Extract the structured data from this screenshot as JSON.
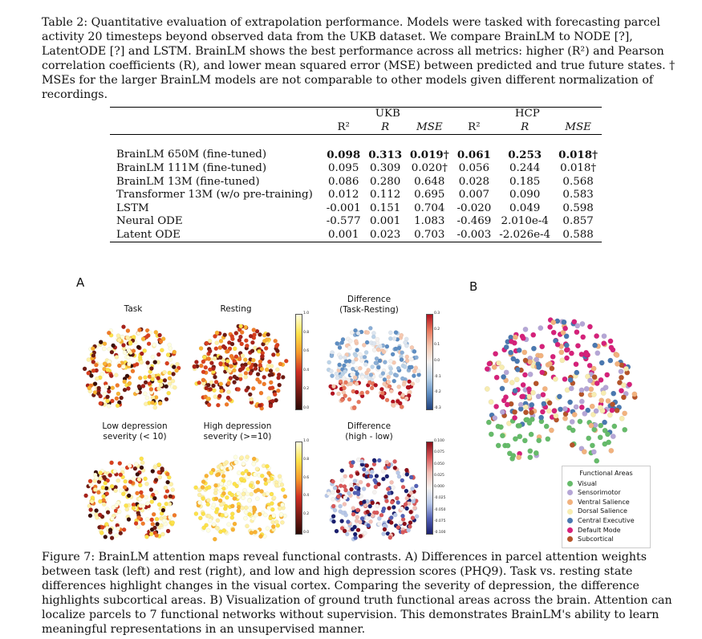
{
  "table_caption": "Table 2: Quantitative evaluation of extrapolation performance. Models were tasked with forecasting parcel activity 20 timesteps beyond observed data from the UKB dataset. We compare BrainLM to NODE [?], LatentODE [?] and LSTM. BrainLM shows the best performance across all metrics: higher (R²) and Pearson correlation coefficients (R), and lower mean squared error (MSE) between predicted and true future states. † MSEs for the larger BrainLM models are not comparable to other models given different normalization of recordings.",
  "table": {
    "groups": [
      "UKB",
      "HCP"
    ],
    "columns": [
      "R²",
      "R",
      "MSE",
      "R²",
      "R",
      "MSE"
    ],
    "rows": [
      {
        "model": "BrainLM 650M (fine-tuned)",
        "values": [
          "0.098",
          "0.313",
          "0.019†",
          "0.061",
          "0.253",
          "0.018†"
        ],
        "bold": true
      },
      {
        "model": "BrainLM 111M (fine-tuned)",
        "values": [
          "0.095",
          "0.309",
          "0.020†",
          "0.056",
          "0.244",
          "0.018†"
        ]
      },
      {
        "model": "BrainLM 13M (fine-tuned)",
        "values": [
          "0.086",
          "0.280",
          "0.648",
          "0.028",
          "0.185",
          "0.568"
        ]
      },
      {
        "model": "Transformer 13M (w/o pre-training)",
        "values": [
          "0.012",
          "0.112",
          "0.695",
          "0.007",
          "0.090",
          "0.583"
        ]
      },
      {
        "model": "LSTM",
        "values": [
          "-0.001",
          "0.151",
          "0.704",
          "-0.020",
          "0.049",
          "0.598"
        ]
      },
      {
        "model": "Neural ODE",
        "values": [
          "-0.577",
          "0.001",
          "1.083",
          "-0.469",
          "2.010e-4",
          "0.857"
        ]
      },
      {
        "model": "Latent ODE",
        "values": [
          "0.001",
          "0.023",
          "0.703",
          "-0.003",
          "-2.026e-4",
          "0.588"
        ]
      }
    ]
  },
  "figure": {
    "panel_a": "A",
    "panel_b": "B",
    "labels": {
      "task": "Task",
      "resting": "Resting",
      "diff1": [
        "Difference",
        "(Task-Resting)"
      ],
      "low_dep": [
        "Low depression",
        "severity (< 10)"
      ],
      "high_dep": [
        "High depression",
        "severity (>=10)"
      ],
      "diff2": [
        "Difference",
        "(high - low)"
      ]
    },
    "colorbars": {
      "cb1_ticks": [
        "1.0",
        "0.8",
        "0.6",
        "0.4",
        "0.2",
        "0.0"
      ],
      "cb2_ticks": [
        "0.3",
        "0.2",
        "0.1",
        "0.0",
        "-0.1",
        "-0.2",
        "-0.3"
      ],
      "cb3_ticks": [
        "1.0",
        "0.8",
        "0.6",
        "0.4",
        "0.2",
        "0.0"
      ],
      "cb4_ticks": [
        "0.100",
        "0.075",
        "0.050",
        "0.025",
        "0.000",
        "-0.025",
        "-0.050",
        "-0.075",
        "-0.100"
      ]
    },
    "legend": {
      "title": "Functional Areas",
      "items": [
        {
          "label": "Visual",
          "color": "#66bb6a"
        },
        {
          "label": "Sensorimotor",
          "color": "#b5a6d6"
        },
        {
          "label": "Ventral Salience",
          "color": "#f2b27e"
        },
        {
          "label": "Dorsal Salience",
          "color": "#f7ecb0"
        },
        {
          "label": "Central Executive",
          "color": "#4a78b0"
        },
        {
          "label": "Default Mode",
          "color": "#d6217a"
        },
        {
          "label": "Subcortical",
          "color": "#b5542a"
        }
      ]
    }
  },
  "figure_caption": "Figure 7: BrainLM attention maps reveal functional contrasts. A) Differences in parcel attention weights between task (left) and rest (right), and low and high depression scores (PHQ9). Task vs. resting state differences highlight changes in the visual cortex. Comparing the severity of depression, the difference highlights subcortical areas. B) Visualization of ground truth functional areas across the brain. Attention can localize parcels to 7 functional networks without supervision. This demonstrates BrainLM's ability to learn meaningful representations in an unsupervised manner."
}
